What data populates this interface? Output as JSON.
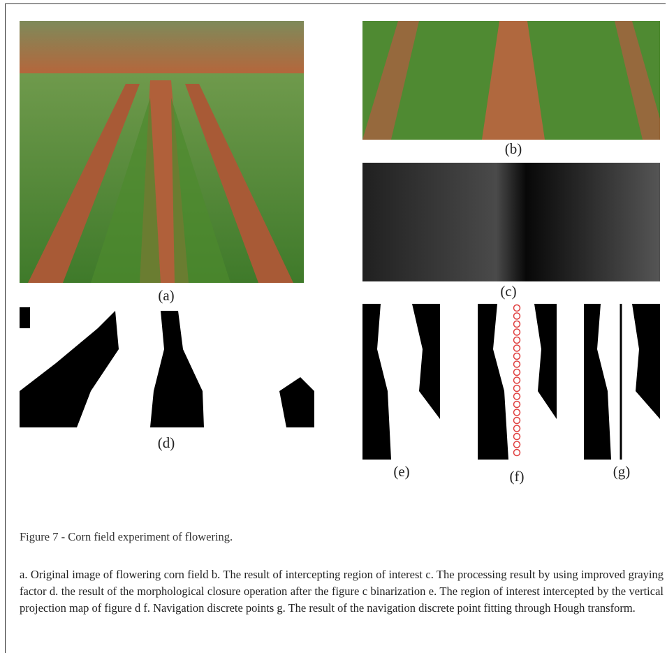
{
  "figure": {
    "panels": [
      "(a)",
      "(b)",
      "(c)",
      "(d)",
      "(e)",
      "(f)",
      "(g)"
    ],
    "caption": "Figure 7 - Corn field experiment of flowering.",
    "description": "a. Original image of flowering corn field b. The result of intercepting region of interest c. The processing result by using improved graying factor d. the result of the morphological closure operation after the figure c binarization e. The region of interest intercepted by the vertical projection map of figure d f. Navigation discrete points g. The result of the navigation discrete point fitting through Hough transform."
  }
}
